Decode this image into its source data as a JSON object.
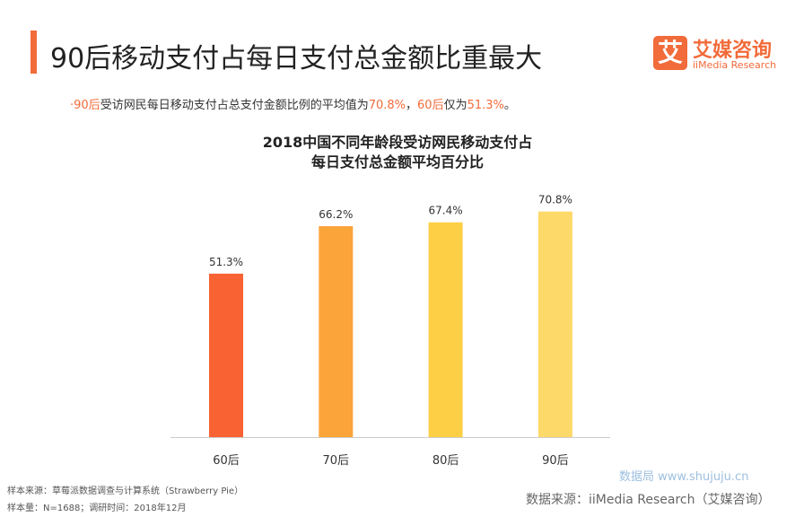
{
  "header": {
    "title": "90后移动支付占每日支付总金额比重最大",
    "accent_color": "#F26B3A"
  },
  "logo": {
    "mark": "艾",
    "name_cn": "艾媒咨询",
    "name_en": "iiMedia Research"
  },
  "summary": {
    "bullet": "·",
    "p1": "90后",
    "p2": "受访网民每日移动支付占总支付金额比例的平均值为",
    "p3": "70.8%",
    "p4": "，",
    "p5": "60后",
    "p6": "仅为",
    "p7": "51.3%",
    "p8": "。"
  },
  "chart_data": {
    "type": "bar",
    "title_line1": "2018中国不同年龄段受访网民移动支付占",
    "title_line2": "每日支付总金额平均百分比",
    "categories": [
      "60后",
      "70后",
      "80后",
      "90后"
    ],
    "values": [
      51.3,
      66.2,
      67.4,
      70.8
    ],
    "data_labels": [
      "51.3%",
      "66.2%",
      "67.4%",
      "70.8%"
    ],
    "colors": [
      "#F96232",
      "#FBA43A",
      "#FDCF45",
      "#FDD96A"
    ],
    "ylim": [
      0,
      100
    ],
    "grid": false
  },
  "footer": {
    "sample_source": "样本来源：草莓派数据调查与计算系统（Strawberry Pie）",
    "sample_size": "样本量：N=1688；调研时间：2018年12月",
    "data_source": "数据来源：iiMedia Research（艾媒咨询）",
    "watermark": "数据局 www.shujuju.cn"
  }
}
